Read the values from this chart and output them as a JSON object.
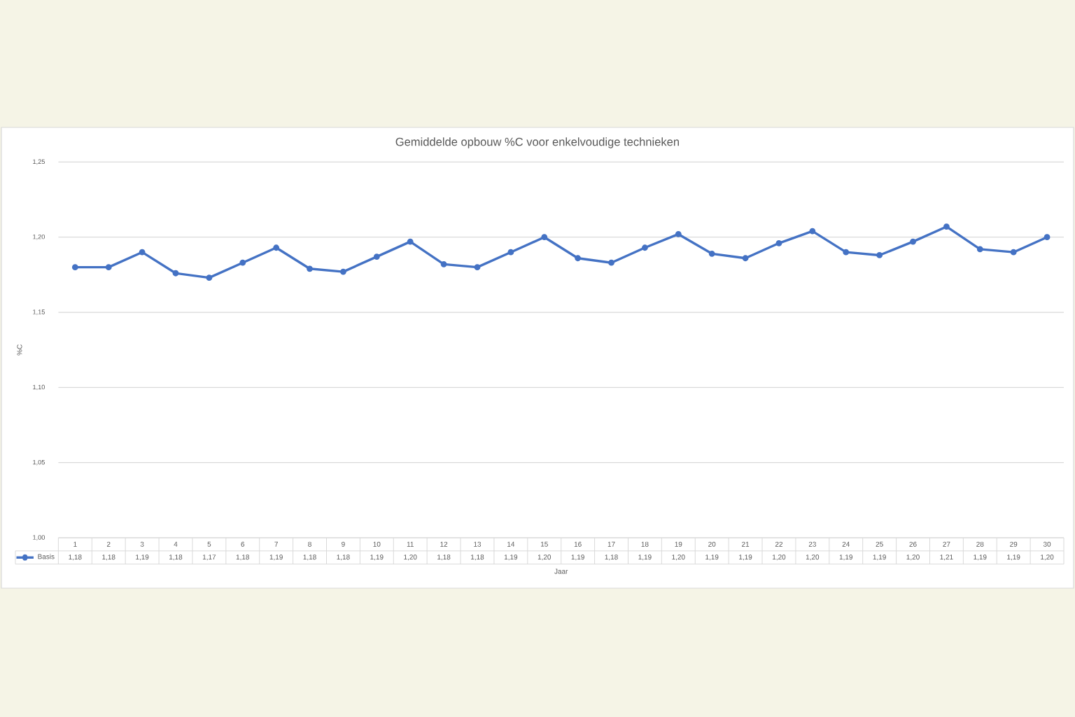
{
  "chart_data": {
    "type": "line",
    "title": "Gemiddelde opbouw %C voor enkelvoudige technieken",
    "xlabel": "Jaar",
    "ylabel": "%C",
    "categories": [
      "1",
      "2",
      "3",
      "4",
      "5",
      "6",
      "7",
      "8",
      "9",
      "10",
      "11",
      "12",
      "13",
      "14",
      "15",
      "16",
      "17",
      "18",
      "19",
      "20",
      "21",
      "22",
      "23",
      "24",
      "25",
      "26",
      "27",
      "28",
      "29",
      "30"
    ],
    "series": [
      {
        "name": "Basis",
        "color": "#4472c4",
        "values": [
          1.18,
          1.18,
          1.19,
          1.176,
          1.173,
          1.183,
          1.193,
          1.179,
          1.177,
          1.187,
          1.197,
          1.182,
          1.18,
          1.19,
          1.2,
          1.186,
          1.183,
          1.193,
          1.202,
          1.189,
          1.186,
          1.196,
          1.204,
          1.19,
          1.188,
          1.197,
          1.207,
          1.192,
          1.19,
          1.2
        ],
        "value_labels": [
          "1,18",
          "1,18",
          "1,19",
          "1,18",
          "1,17",
          "1,18",
          "1,19",
          "1,18",
          "1,18",
          "1,19",
          "1,20",
          "1,18",
          "1,18",
          "1,19",
          "1,20",
          "1,19",
          "1,18",
          "1,19",
          "1,20",
          "1,19",
          "1,19",
          "1,20",
          "1,20",
          "1,19",
          "1,19",
          "1,20",
          "1,21",
          "1,19",
          "1,19",
          "1,20"
        ]
      }
    ],
    "ylim": [
      1.0,
      1.25
    ],
    "yticks": [
      {
        "value": 1.0,
        "label": "1,00"
      },
      {
        "value": 1.05,
        "label": "1,05"
      },
      {
        "value": 1.1,
        "label": "1,10"
      },
      {
        "value": 1.15,
        "label": "1,15"
      },
      {
        "value": 1.2,
        "label": "1,20"
      },
      {
        "value": 1.25,
        "label": "1,25"
      }
    ],
    "grid": "y",
    "legend": "bottom left",
    "marker": "circle",
    "line_style": "solid"
  }
}
